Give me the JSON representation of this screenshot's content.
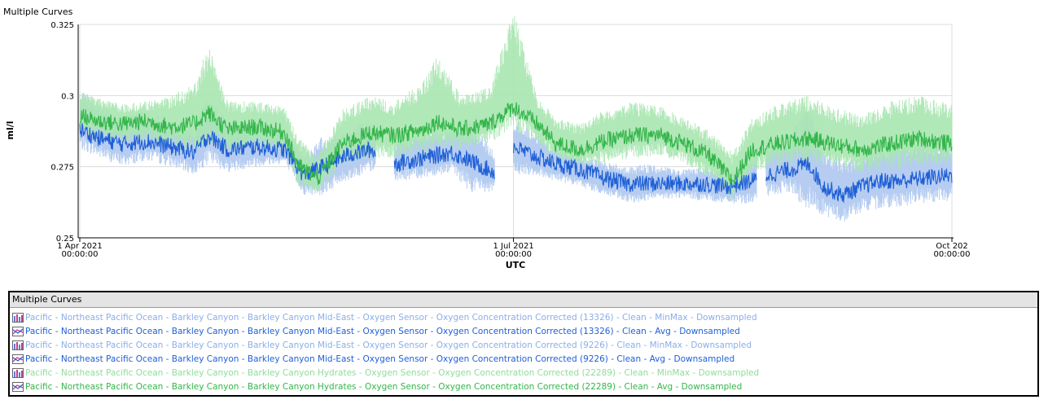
{
  "page": {
    "title": "Multiple Curves"
  },
  "legend": {
    "header": "Multiple Curves"
  },
  "chart_data": {
    "type": "line",
    "title": "Multiple Curves",
    "xlabel": "UTC",
    "ylabel": "ml/l",
    "xlim": [
      "2021-04-01",
      "2021-10-01"
    ],
    "ylim": [
      0.25,
      0.325
    ],
    "yticks": [
      {
        "value": 0.25,
        "label": "0.25"
      },
      {
        "value": 0.275,
        "label": "0.275"
      },
      {
        "value": 0.3,
        "label": "0.3"
      },
      {
        "value": 0.325,
        "label": "0.325"
      }
    ],
    "xticks": [
      {
        "date": "2021-04-01",
        "line1": "1 Apr 2021",
        "line2": "00:00:00"
      },
      {
        "date": "2021-07-01",
        "line1": "1 Jul 2021",
        "line2": "00:00:00"
      },
      {
        "date": "2021-10-01",
        "line1": "Oct 202",
        "line2": "00:00:00"
      }
    ],
    "grid": true,
    "legend_position": "bottom",
    "series": [
      {
        "name": "Pacific - Northeast Pacific Ocean - Barkley Canyon - Barkley Canyon Mid-East - Oxygen Sensor - Oxygen Concentration Corrected (13326) - Clean - MinMax - Downsampled",
        "kind": "minmax",
        "color": "#aec8f0",
        "icon": "minmax-icon",
        "group": "blue",
        "gaps": [
          [
            "2021-06-02",
            "2021-06-06"
          ],
          [
            "2021-06-28",
            "2021-07-01"
          ]
        ],
        "points": [
          [
            "2021-04-01",
            0.281,
            0.302
          ],
          [
            "2021-04-05",
            0.278,
            0.297
          ],
          [
            "2021-04-10",
            0.275,
            0.293
          ],
          [
            "2021-04-15",
            0.277,
            0.295
          ],
          [
            "2021-04-20",
            0.275,
            0.291
          ],
          [
            "2021-04-25",
            0.272,
            0.289
          ],
          [
            "2021-04-28",
            0.276,
            0.3
          ],
          [
            "2021-05-02",
            0.273,
            0.291
          ],
          [
            "2021-05-08",
            0.275,
            0.29
          ],
          [
            "2021-05-14",
            0.276,
            0.288
          ],
          [
            "2021-05-18",
            0.265,
            0.279
          ],
          [
            "2021-05-22",
            0.265,
            0.286
          ],
          [
            "2021-05-27",
            0.27,
            0.288
          ],
          [
            "2021-06-01",
            0.273,
            0.292
          ],
          [
            "2021-06-06",
            0.27,
            0.284
          ],
          [
            "2021-06-12",
            0.271,
            0.287
          ],
          [
            "2021-06-18",
            0.273,
            0.289
          ],
          [
            "2021-06-22",
            0.266,
            0.292
          ],
          [
            "2021-06-27",
            0.266,
            0.28
          ]
        ]
      },
      {
        "name": "Pacific - Northeast Pacific Ocean - Barkley Canyon - Barkley Canyon Mid-East - Oxygen Sensor - Oxygen Concentration Corrected (13326) - Clean - Avg - Downsampled",
        "kind": "avg",
        "color": "#1f5fd6",
        "icon": "line-icon",
        "group": "blue",
        "gaps": [
          [
            "2021-06-02",
            "2021-06-06"
          ],
          [
            "2021-06-28",
            "2021-07-01"
          ]
        ],
        "points": [
          [
            "2021-04-01",
            0.288
          ],
          [
            "2021-04-05",
            0.285
          ],
          [
            "2021-04-10",
            0.283
          ],
          [
            "2021-04-15",
            0.284
          ],
          [
            "2021-04-20",
            0.282
          ],
          [
            "2021-04-25",
            0.28
          ],
          [
            "2021-04-28",
            0.286
          ],
          [
            "2021-05-02",
            0.281
          ],
          [
            "2021-05-08",
            0.282
          ],
          [
            "2021-05-14",
            0.281
          ],
          [
            "2021-05-18",
            0.272
          ],
          [
            "2021-05-22",
            0.275
          ],
          [
            "2021-05-27",
            0.279
          ],
          [
            "2021-06-01",
            0.281
          ],
          [
            "2021-06-06",
            0.276
          ],
          [
            "2021-06-12",
            0.278
          ],
          [
            "2021-06-18",
            0.28
          ],
          [
            "2021-06-22",
            0.277
          ],
          [
            "2021-06-27",
            0.273
          ]
        ]
      },
      {
        "name": "Pacific - Northeast Pacific Ocean - Barkley Canyon - Barkley Canyon Mid-East - Oxygen Sensor - Oxygen Concentration Corrected (9226) - Clean - MinMax - Downsampled",
        "kind": "minmax",
        "color": "#aec8f0",
        "icon": "minmax-icon",
        "group": "blue",
        "gaps": [
          [
            "2021-08-21",
            "2021-08-23"
          ]
        ],
        "points": [
          [
            "2021-07-01",
            0.272,
            0.292
          ],
          [
            "2021-07-05",
            0.272,
            0.288
          ],
          [
            "2021-07-10",
            0.27,
            0.282
          ],
          [
            "2021-07-15",
            0.268,
            0.279
          ],
          [
            "2021-07-20",
            0.265,
            0.277
          ],
          [
            "2021-07-25",
            0.262,
            0.275
          ],
          [
            "2021-07-30",
            0.263,
            0.276
          ],
          [
            "2021-08-05",
            0.264,
            0.274
          ],
          [
            "2021-08-10",
            0.263,
            0.275
          ],
          [
            "2021-08-15",
            0.262,
            0.273
          ],
          [
            "2021-08-20",
            0.262,
            0.278
          ],
          [
            "2021-08-23",
            0.264,
            0.283
          ],
          [
            "2021-08-28",
            0.266,
            0.287
          ],
          [
            "2021-09-01",
            0.259,
            0.298
          ],
          [
            "2021-09-04",
            0.258,
            0.282
          ],
          [
            "2021-09-08",
            0.255,
            0.278
          ],
          [
            "2021-09-12",
            0.259,
            0.279
          ],
          [
            "2021-09-16",
            0.26,
            0.284
          ],
          [
            "2021-09-20",
            0.261,
            0.283
          ],
          [
            "2021-09-25",
            0.262,
            0.285
          ],
          [
            "2021-10-01",
            0.263,
            0.283
          ]
        ]
      },
      {
        "name": "Pacific - Northeast Pacific Ocean - Barkley Canyon - Barkley Canyon Mid-East - Oxygen Sensor - Oxygen Concentration Corrected (9226) - Clean - Avg - Downsampled",
        "kind": "avg",
        "color": "#1f5fd6",
        "icon": "line-icon",
        "group": "blue",
        "gaps": [
          [
            "2021-08-21",
            "2021-08-23"
          ]
        ],
        "points": [
          [
            "2021-07-01",
            0.282
          ],
          [
            "2021-07-05",
            0.279
          ],
          [
            "2021-07-10",
            0.276
          ],
          [
            "2021-07-15",
            0.274
          ],
          [
            "2021-07-20",
            0.271
          ],
          [
            "2021-07-25",
            0.269
          ],
          [
            "2021-07-30",
            0.269
          ],
          [
            "2021-08-05",
            0.269
          ],
          [
            "2021-08-10",
            0.269
          ],
          [
            "2021-08-15",
            0.268
          ],
          [
            "2021-08-20",
            0.27
          ],
          [
            "2021-08-23",
            0.272
          ],
          [
            "2021-08-28",
            0.274
          ],
          [
            "2021-09-01",
            0.276
          ],
          [
            "2021-09-04",
            0.268
          ],
          [
            "2021-09-08",
            0.265
          ],
          [
            "2021-09-12",
            0.268
          ],
          [
            "2021-09-16",
            0.27
          ],
          [
            "2021-09-20",
            0.27
          ],
          [
            "2021-09-25",
            0.271
          ],
          [
            "2021-10-01",
            0.272
          ]
        ]
      },
      {
        "name": "Pacific - Northeast Pacific Ocean - Barkley Canyon - Barkley Canyon Hydrates - Oxygen Sensor - Oxygen Concentration Corrected (22289) - Clean - MinMax - Downsampled",
        "kind": "minmax",
        "color": "#a8e6b0",
        "icon": "minmax-icon",
        "group": "green",
        "gaps": [],
        "points": [
          [
            "2021-04-01",
            0.286,
            0.302
          ],
          [
            "2021-04-05",
            0.285,
            0.299
          ],
          [
            "2021-04-10",
            0.284,
            0.297
          ],
          [
            "2021-04-15",
            0.284,
            0.298
          ],
          [
            "2021-04-20",
            0.282,
            0.3
          ],
          [
            "2021-04-25",
            0.28,
            0.304
          ],
          [
            "2021-04-28",
            0.283,
            0.318
          ],
          [
            "2021-05-02",
            0.28,
            0.298
          ],
          [
            "2021-05-08",
            0.282,
            0.298
          ],
          [
            "2021-05-14",
            0.28,
            0.296
          ],
          [
            "2021-05-17",
            0.268,
            0.285
          ],
          [
            "2021-05-21",
            0.266,
            0.279
          ],
          [
            "2021-05-26",
            0.275,
            0.295
          ],
          [
            "2021-06-01",
            0.278,
            0.3
          ],
          [
            "2021-06-06",
            0.278,
            0.298
          ],
          [
            "2021-06-12",
            0.279,
            0.305
          ],
          [
            "2021-06-15",
            0.281,
            0.314
          ],
          [
            "2021-06-20",
            0.281,
            0.3
          ],
          [
            "2021-06-26",
            0.283,
            0.303
          ],
          [
            "2021-07-01",
            0.288,
            0.33
          ],
          [
            "2021-07-06",
            0.283,
            0.3
          ],
          [
            "2021-07-10",
            0.277,
            0.292
          ],
          [
            "2021-07-15",
            0.275,
            0.29
          ],
          [
            "2021-07-20",
            0.276,
            0.295
          ],
          [
            "2021-07-26",
            0.278,
            0.298
          ],
          [
            "2021-08-01",
            0.279,
            0.296
          ],
          [
            "2021-08-06",
            0.276,
            0.292
          ],
          [
            "2021-08-11",
            0.271,
            0.288
          ],
          [
            "2021-08-16",
            0.263,
            0.28
          ],
          [
            "2021-08-20",
            0.273,
            0.292
          ],
          [
            "2021-08-25",
            0.275,
            0.297
          ],
          [
            "2021-09-01",
            0.276,
            0.3
          ],
          [
            "2021-09-06",
            0.275,
            0.296
          ],
          [
            "2021-09-12",
            0.273,
            0.293
          ],
          [
            "2021-09-18",
            0.274,
            0.298
          ],
          [
            "2021-09-24",
            0.275,
            0.3
          ],
          [
            "2021-10-01",
            0.276,
            0.297
          ]
        ]
      },
      {
        "name": "Pacific - Northeast Pacific Ocean - Barkley Canyon - Barkley Canyon Hydrates - Oxygen Sensor - Oxygen Concentration Corrected (22289) - Clean - Avg - Downsampled",
        "kind": "avg",
        "color": "#33b54a",
        "icon": "line-icon",
        "group": "green",
        "gaps": [],
        "points": [
          [
            "2021-04-01",
            0.293
          ],
          [
            "2021-04-05",
            0.291
          ],
          [
            "2021-04-10",
            0.29
          ],
          [
            "2021-04-15",
            0.291
          ],
          [
            "2021-04-20",
            0.289
          ],
          [
            "2021-04-25",
            0.29
          ],
          [
            "2021-04-28",
            0.294
          ],
          [
            "2021-05-02",
            0.288
          ],
          [
            "2021-05-08",
            0.289
          ],
          [
            "2021-05-14",
            0.287
          ],
          [
            "2021-05-17",
            0.275
          ],
          [
            "2021-05-21",
            0.271
          ],
          [
            "2021-05-26",
            0.283
          ],
          [
            "2021-06-01",
            0.287
          ],
          [
            "2021-06-06",
            0.286
          ],
          [
            "2021-06-12",
            0.288
          ],
          [
            "2021-06-15",
            0.291
          ],
          [
            "2021-06-20",
            0.288
          ],
          [
            "2021-06-26",
            0.29
          ],
          [
            "2021-07-01",
            0.296
          ],
          [
            "2021-07-06",
            0.29
          ],
          [
            "2021-07-10",
            0.283
          ],
          [
            "2021-07-15",
            0.281
          ],
          [
            "2021-07-20",
            0.284
          ],
          [
            "2021-07-26",
            0.286
          ],
          [
            "2021-08-01",
            0.286
          ],
          [
            "2021-08-06",
            0.283
          ],
          [
            "2021-08-11",
            0.279
          ],
          [
            "2021-08-16",
            0.27
          ],
          [
            "2021-08-20",
            0.281
          ],
          [
            "2021-08-25",
            0.283
          ],
          [
            "2021-09-01",
            0.285
          ],
          [
            "2021-09-06",
            0.283
          ],
          [
            "2021-09-12",
            0.281
          ],
          [
            "2021-09-18",
            0.283
          ],
          [
            "2021-09-24",
            0.285
          ],
          [
            "2021-10-01",
            0.283
          ]
        ]
      }
    ]
  }
}
